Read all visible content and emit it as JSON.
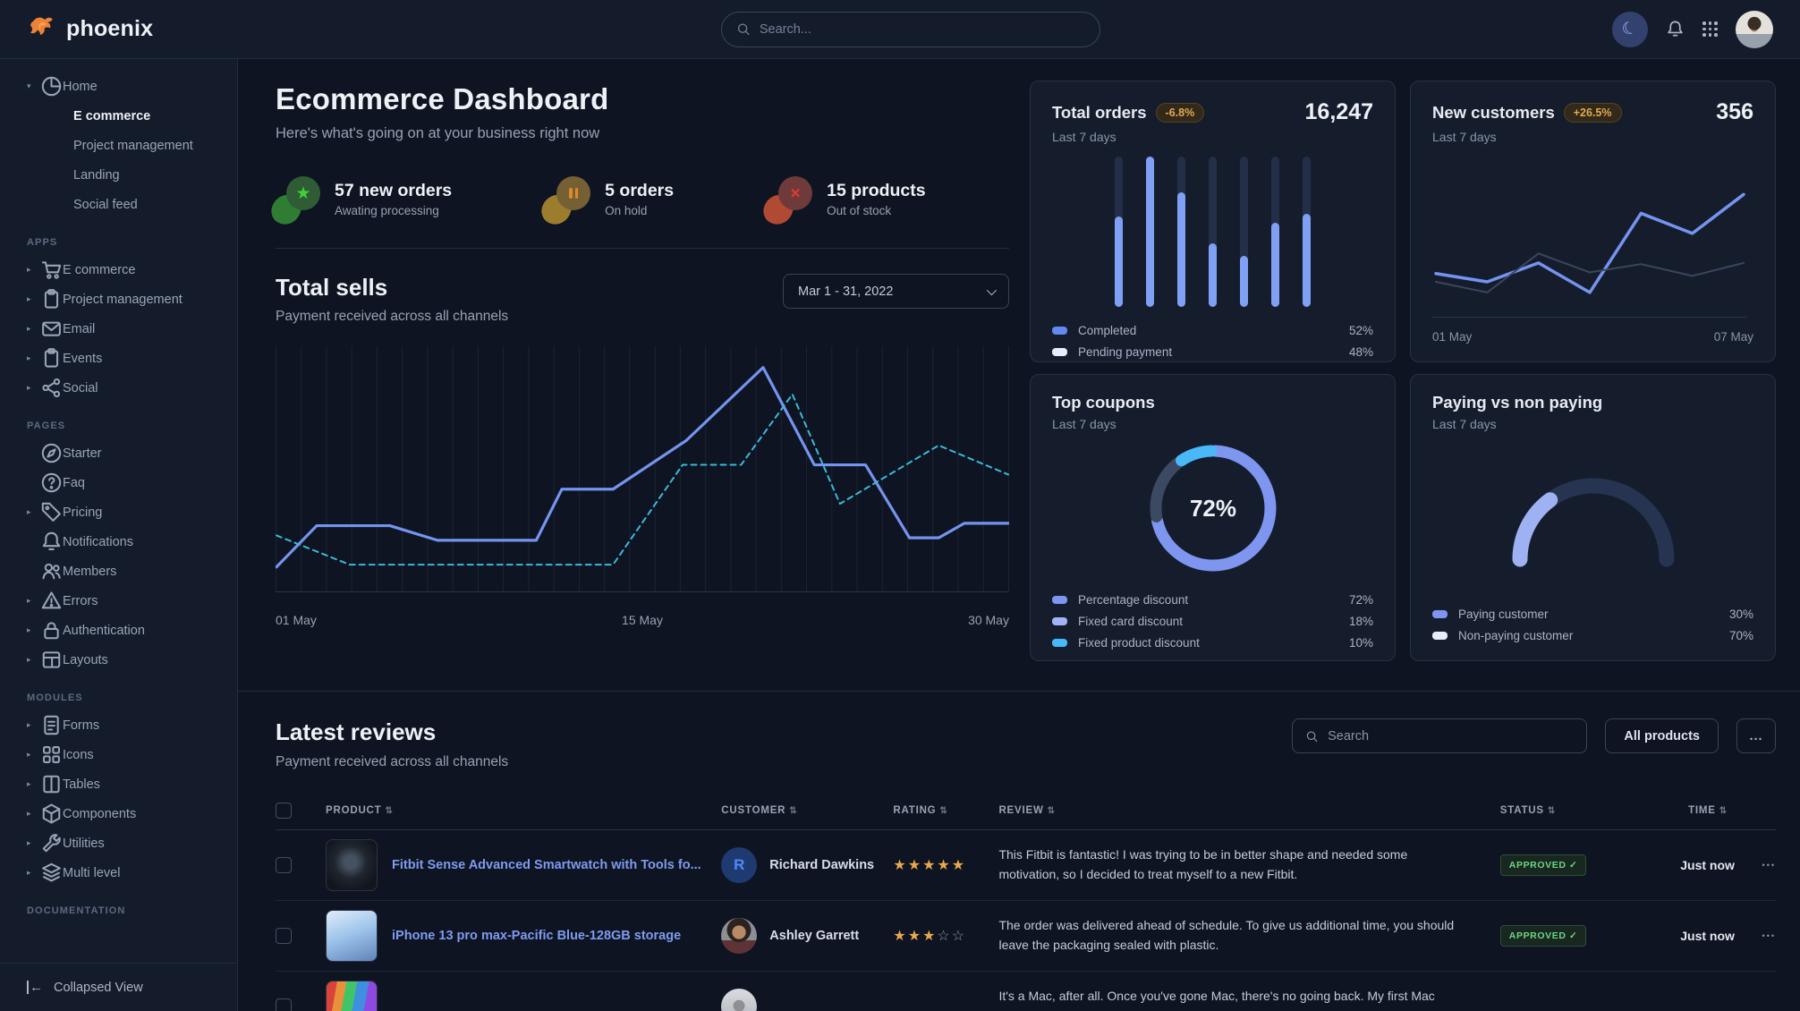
{
  "navbar": {
    "brand": "phoenix",
    "search_placeholder": "Search..."
  },
  "sidebar": {
    "home": {
      "label": "Home",
      "children": [
        {
          "label": "E commerce",
          "active": true
        },
        {
          "label": "Project management",
          "active": false
        },
        {
          "label": "Landing",
          "active": false
        },
        {
          "label": "Social feed",
          "active": false
        }
      ]
    },
    "sections": [
      {
        "label": "APPS",
        "items": [
          {
            "label": "E commerce",
            "icon": "cart",
            "caret": true
          },
          {
            "label": "Project management",
            "icon": "clipboard",
            "caret": true
          },
          {
            "label": "Email",
            "icon": "mail",
            "caret": true
          },
          {
            "label": "Events",
            "icon": "calendar",
            "caret": true
          },
          {
            "label": "Social",
            "icon": "share",
            "caret": true
          }
        ]
      },
      {
        "label": "PAGES",
        "items": [
          {
            "label": "Starter",
            "icon": "compass",
            "caret": false
          },
          {
            "label": "Faq",
            "icon": "question",
            "caret": false
          },
          {
            "label": "Pricing",
            "icon": "tag",
            "caret": true
          },
          {
            "label": "Notifications",
            "icon": "bell",
            "caret": false
          },
          {
            "label": "Members",
            "icon": "users",
            "caret": false
          },
          {
            "label": "Errors",
            "icon": "warning",
            "caret": true
          },
          {
            "label": "Authentication",
            "icon": "lock",
            "caret": true
          },
          {
            "label": "Layouts",
            "icon": "layout",
            "caret": true
          }
        ]
      },
      {
        "label": "MODULES",
        "items": [
          {
            "label": "Forms",
            "icon": "file",
            "caret": true
          },
          {
            "label": "Icons",
            "icon": "grid",
            "caret": true
          },
          {
            "label": "Tables",
            "icon": "columns",
            "caret": true
          },
          {
            "label": "Components",
            "icon": "box",
            "caret": true
          },
          {
            "label": "Utilities",
            "icon": "wrench",
            "caret": true
          },
          {
            "label": "Multi level",
            "icon": "layers",
            "caret": true
          }
        ]
      },
      {
        "label": "DOCUMENTATION",
        "items": []
      }
    ],
    "footer": {
      "label": "Collapsed View"
    }
  },
  "page_header": {
    "title": "Ecommerce Dashboard",
    "subtitle": "Here's what's going on at your business right now"
  },
  "stats": [
    {
      "title": "57 new orders",
      "subtitle": "Awating processing",
      "icon": "star",
      "color": "green"
    },
    {
      "title": "5 orders",
      "subtitle": "On hold",
      "icon": "pause",
      "color": "yellow"
    },
    {
      "title": "15 products",
      "subtitle": "Out of stock",
      "icon": "cross",
      "color": "red"
    }
  ],
  "total_sells": {
    "title": "Total sells",
    "subtitle": "Payment received across all channels",
    "date_range": "Mar 1 - 31, 2022",
    "x_labels": [
      "01 May",
      "15 May",
      "30 May"
    ],
    "gridlines": 30,
    "chart": {
      "type": "line",
      "ylim": [
        0,
        100
      ],
      "series": [
        {
          "name": "current",
          "color": "#7593f0",
          "dash": false,
          "points": [
            [
              0,
              10
            ],
            [
              0.055,
              27
            ],
            [
              0.155,
              27
            ],
            [
              0.22,
              21
            ],
            [
              0.355,
              21
            ],
            [
              0.39,
              42
            ],
            [
              0.46,
              42
            ],
            [
              0.56,
              62
            ],
            [
              0.665,
              92
            ],
            [
              0.735,
              52
            ],
            [
              0.805,
              52
            ],
            [
              0.865,
              22
            ],
            [
              0.905,
              22
            ],
            [
              0.94,
              28
            ],
            [
              1,
              28
            ]
          ]
        },
        {
          "name": "previous",
          "color": "#3bb8d8",
          "dash": true,
          "points": [
            [
              0,
              23
            ],
            [
              0.1,
              11
            ],
            [
              0.46,
              11
            ],
            [
              0.555,
              52
            ],
            [
              0.635,
              52
            ],
            [
              0.705,
              81
            ],
            [
              0.77,
              36
            ],
            [
              0.905,
              60
            ],
            [
              1,
              48
            ]
          ]
        }
      ]
    }
  },
  "cards": {
    "total_orders": {
      "title": "Total orders",
      "badge": "-6.8%",
      "period": "Last 7 days",
      "value": "16,247",
      "chart": {
        "type": "bar",
        "values": [
          60,
          100,
          76,
          42,
          34,
          56,
          62
        ],
        "ylim": [
          0,
          100
        ]
      },
      "legend": [
        {
          "label": "Completed",
          "value": "52%",
          "swatch": "#6189ef"
        },
        {
          "label": "Pending payment",
          "value": "48%",
          "swatch": "#e6edfc"
        }
      ]
    },
    "new_customers": {
      "title": "New customers",
      "badge": "+26.5%",
      "period": "Last 7 days",
      "value": "356",
      "x_labels": [
        "01 May",
        "07 May"
      ],
      "chart": {
        "type": "line",
        "ylim": [
          0,
          100
        ],
        "series": [
          {
            "name": "current",
            "color": "#7593f0",
            "width": 3.5,
            "values": [
              32,
              25,
              41,
              16,
              83,
              66,
              99
            ]
          },
          {
            "name": "previous",
            "color": "#3c455c",
            "width": 2,
            "values": [
              25,
              16,
              49,
              33,
              40,
              30,
              41
            ]
          }
        ]
      }
    },
    "top_coupons": {
      "title": "Top coupons",
      "period": "Last 7 days",
      "center_label": "72%",
      "chart": {
        "type": "pie",
        "segments": [
          {
            "label": "Percentage discount",
            "value": 72,
            "display": "72%",
            "color": "#7e96f0",
            "swatch": "#7e96f0"
          },
          {
            "label": "Fixed card discount",
            "value": 18,
            "display": "18%",
            "color": "#3c4963",
            "swatch": "#a3b4f6"
          },
          {
            "label": "Fixed product discount",
            "value": 10,
            "display": "10%",
            "color": "#49b8f7",
            "swatch": "#49b8f7"
          }
        ]
      }
    },
    "paying": {
      "title": "Paying vs non paying",
      "period": "Last 7 days",
      "chart": {
        "type": "gauge",
        "segments": [
          {
            "label": "Paying customer",
            "value": 30,
            "display": "30%",
            "color": "#9db1f3",
            "swatch": "#7e96f0"
          },
          {
            "label": "Non-paying customer",
            "value": 70,
            "display": "70%",
            "color": "#263452",
            "swatch": "#e9eefb"
          }
        ]
      }
    }
  },
  "reviews": {
    "title": "Latest reviews",
    "subtitle": "Payment received across all channels",
    "search_placeholder": "Search",
    "filter_label": "All products",
    "more_label": "...",
    "row_more_label": "...",
    "columns": [
      "PRODUCT",
      "CUSTOMER",
      "RATING",
      "REVIEW",
      "STATUS",
      "TIME"
    ],
    "rows": [
      {
        "product": "Fitbit Sense Advanced Smartwatch with Tools fo...",
        "thumb": "smartwatch",
        "customer": "Richard Dawkins",
        "avatar": "r-initial",
        "avatar_initial": "R",
        "rating": 5,
        "review": "This Fitbit is fantastic! I was trying to be in better shape and needed some motivation, so I decided to treat myself to a new Fitbit.",
        "status": "APPROVED",
        "time": "Just now"
      },
      {
        "product": "iPhone 13 pro max-Pacific Blue-128GB storage",
        "thumb": "iphone",
        "customer": "Ashley Garrett",
        "avatar": "ashley",
        "avatar_initial": "",
        "rating": 3,
        "review": "The order was delivered ahead of schedule. To give us additional time, you should leave the packaging sealed with plastic.",
        "status": "APPROVED",
        "time": "Just now"
      },
      {
        "product": "",
        "thumb": "macbook",
        "customer": "",
        "avatar": "hood",
        "avatar_initial": "",
        "rating": null,
        "review": "It's a Mac, after all. Once you've gone Mac, there's no going back. My first Mac lasted...",
        "status": "",
        "time": ""
      }
    ]
  }
}
